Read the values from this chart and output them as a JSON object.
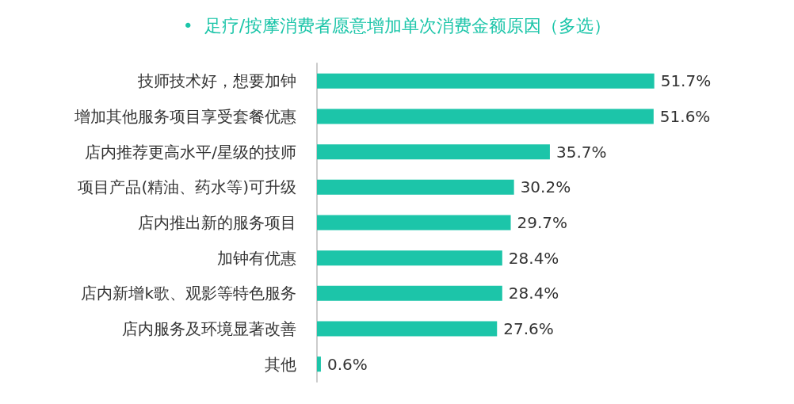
{
  "chart_data": {
    "type": "bar",
    "orientation": "horizontal",
    "title": "•  足疗/按摩消费者愿意增加单次消费金额原因（多选）",
    "categories": [
      "技师技术好，想要加钟",
      "增加其他服务项目享受套餐优惠",
      "店内推荐更高水平/星级的技师",
      "项目产品(精油、药水等)可升级",
      "店内推出新的服务项目",
      "加钟有优惠",
      "店内新增k歌、观影等特色服务",
      "店内服务及环境显著改善",
      "其他"
    ],
    "values": [
      51.7,
      51.6,
      35.7,
      30.2,
      29.7,
      28.4,
      28.4,
      27.6,
      0.6
    ],
    "value_labels": [
      "51.7%",
      "51.6%",
      "35.7%",
      "30.2%",
      "29.7%",
      "28.4%",
      "28.4%",
      "27.6%",
      "0.6%"
    ],
    "color": "#1cc5a9",
    "grid": false
  }
}
